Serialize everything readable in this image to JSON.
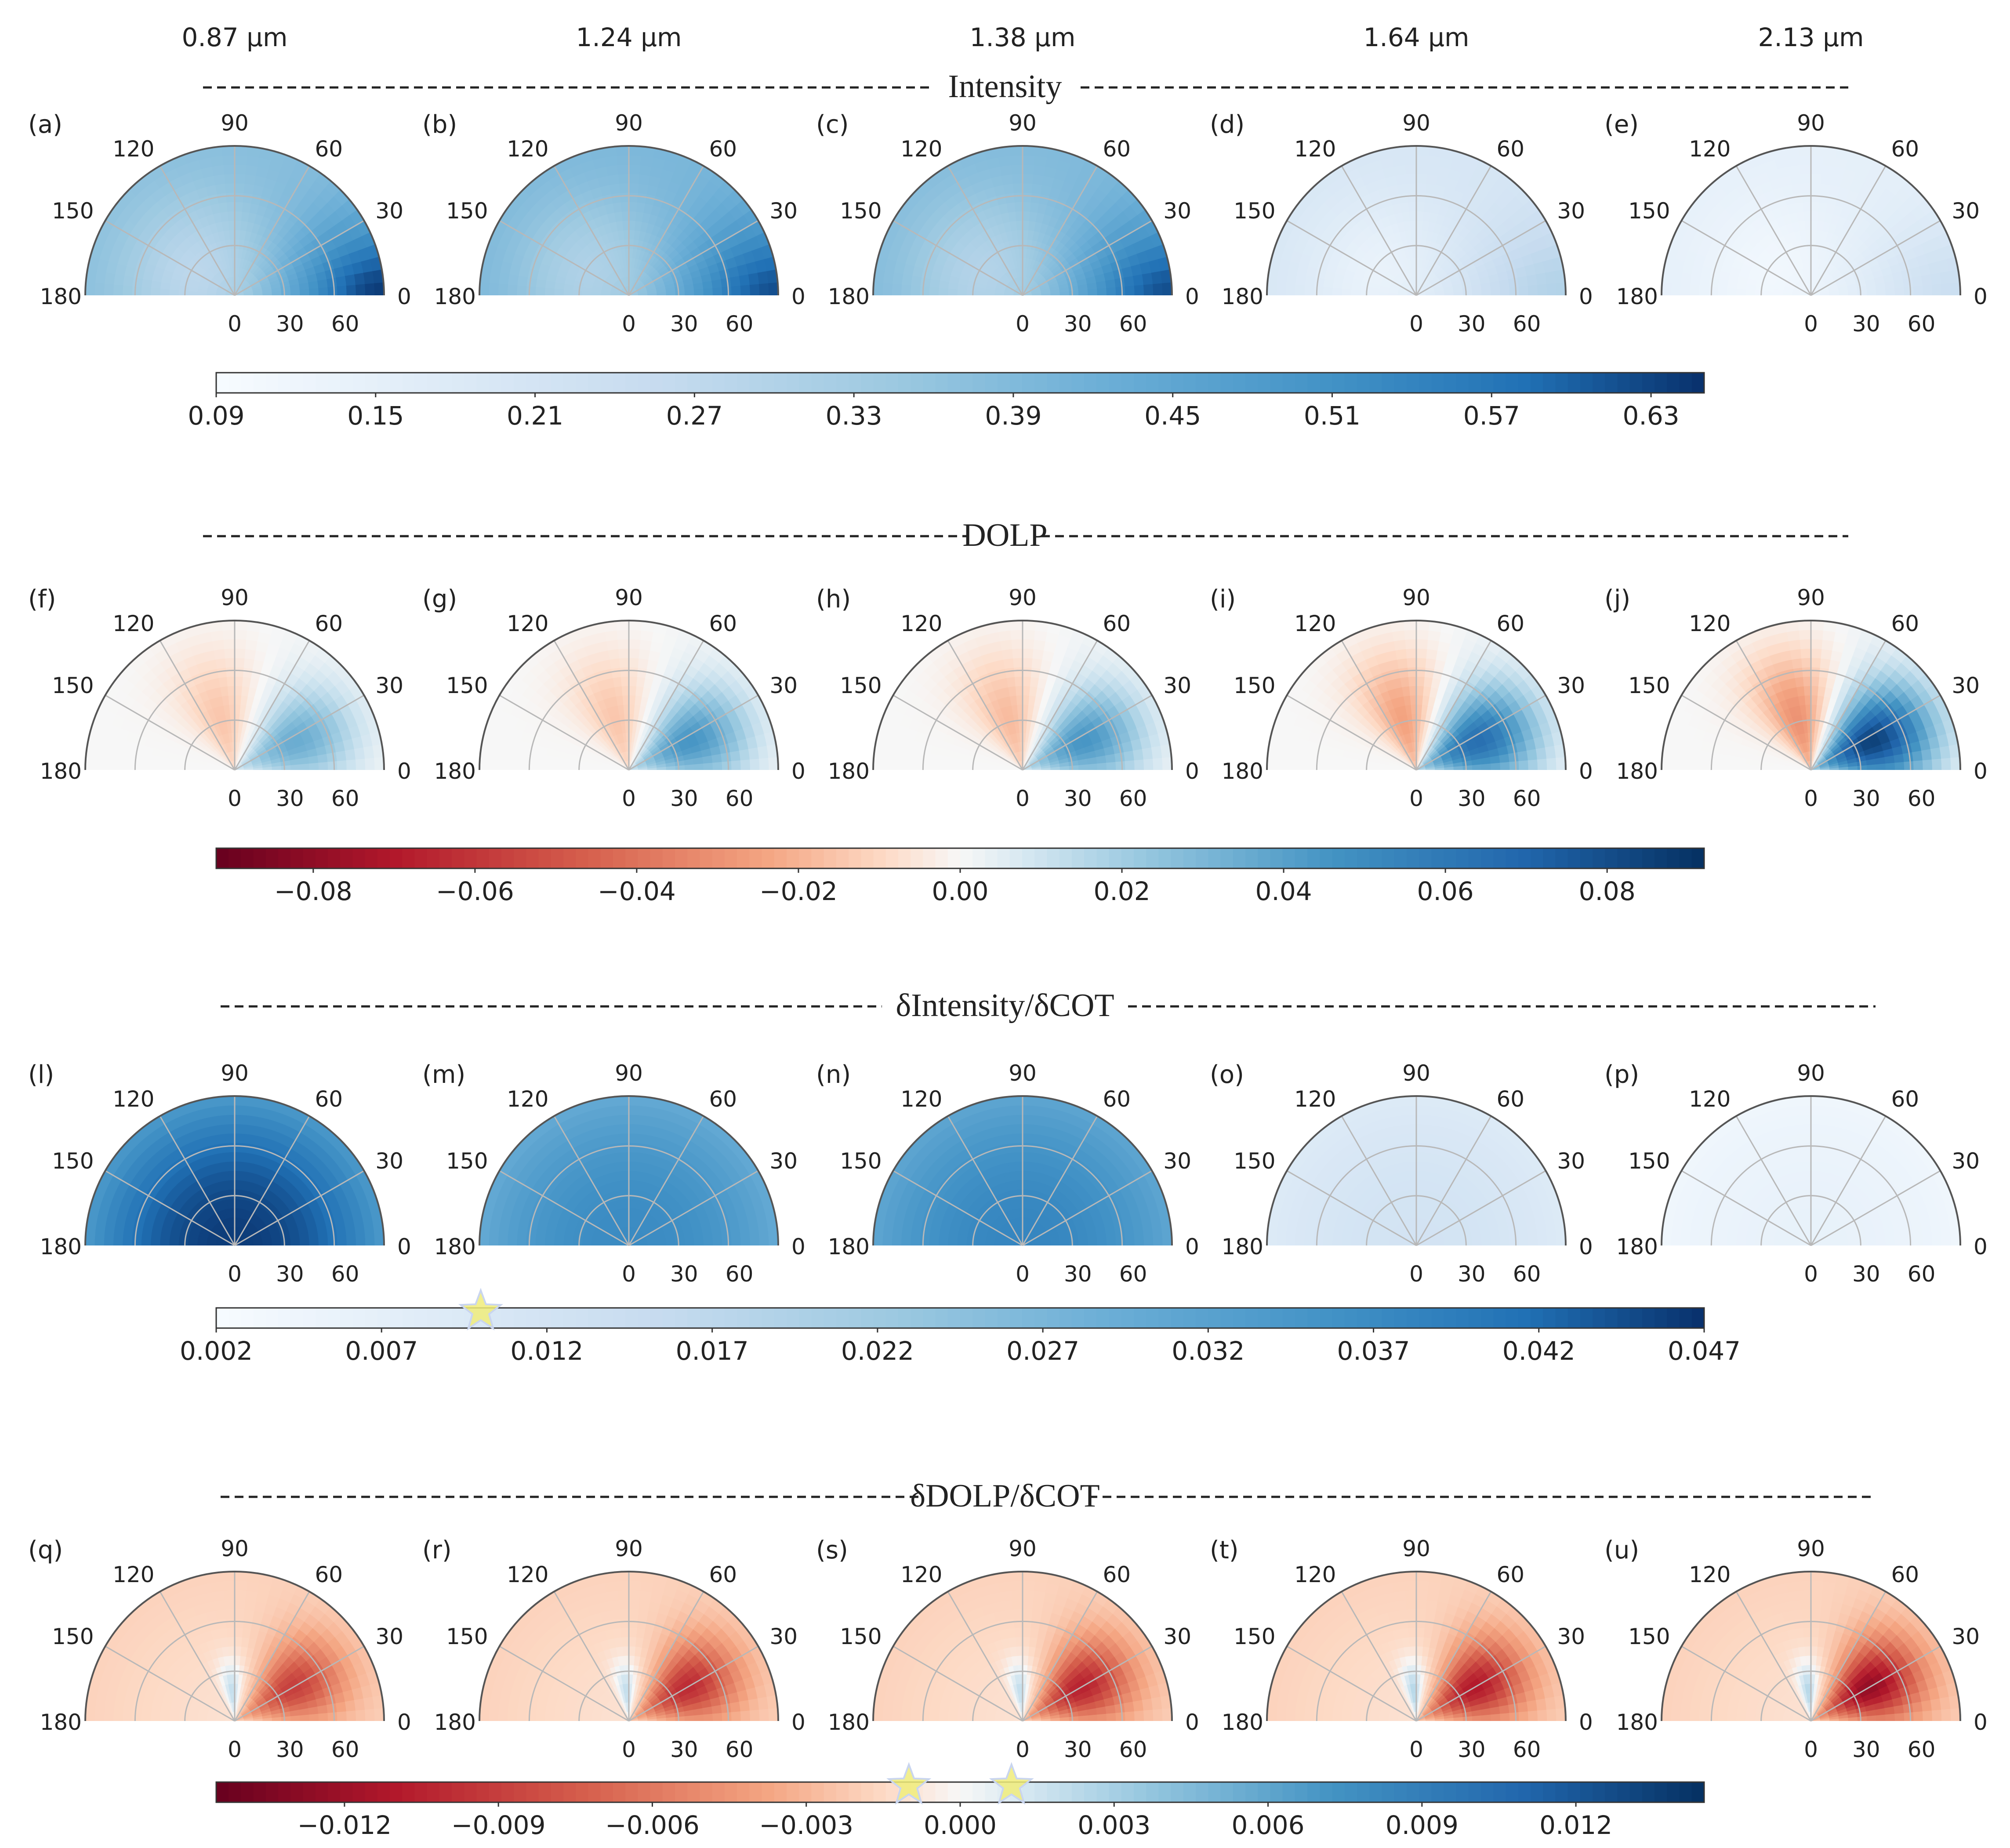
{
  "wavelength_headers": [
    "0.87 μm",
    "1.24 μm",
    "1.38 μm",
    "1.64 μm",
    "2.13 μm"
  ],
  "chart_data": [
    {
      "type": "heatmap",
      "projection": "polar-half",
      "title": "Intensity",
      "panels": [
        {
          "label": "(a)",
          "wavelength": "0.87 μm",
          "min": 0.25,
          "max": 0.64,
          "hotspot_azimuth": 0,
          "hotspot_r": 1.0,
          "bg": 0.38
        },
        {
          "label": "(b)",
          "wavelength": "1.24 μm",
          "min": 0.28,
          "max": 0.62,
          "hotspot_azimuth": 0,
          "hotspot_r": 1.0,
          "bg": 0.4
        },
        {
          "label": "(c)",
          "wavelength": "1.38 μm",
          "min": 0.27,
          "max": 0.62,
          "hotspot_azimuth": 0,
          "hotspot_r": 1.0,
          "bg": 0.39
        },
        {
          "label": "(d)",
          "wavelength": "1.64 μm",
          "min": 0.12,
          "max": 0.3,
          "hotspot_azimuth": 0,
          "hotspot_r": 0.9,
          "bg": 0.2
        },
        {
          "label": "(e)",
          "wavelength": "2.13 μm",
          "min": 0.1,
          "max": 0.24,
          "hotspot_azimuth": 0,
          "hotspot_r": 0.9,
          "bg": 0.15
        }
      ],
      "angular_ticks": [
        "0",
        "30",
        "60",
        "90",
        "120",
        "150",
        "180"
      ],
      "radial_ticks": [
        "0",
        "30",
        "60"
      ],
      "colorbar": {
        "cmap": "Blues",
        "range": [
          0.09,
          0.65
        ],
        "ticks": [
          "0.09",
          "0.15",
          "0.21",
          "0.27",
          "0.33",
          "0.39",
          "0.45",
          "0.51",
          "0.57",
          "0.63"
        ]
      }
    },
    {
      "type": "heatmap",
      "projection": "polar-half",
      "title": "DOLP",
      "panels": [
        {
          "label": "(f)",
          "wavelength": "0.87 μm",
          "min": -0.015,
          "max": 0.035
        },
        {
          "label": "(g)",
          "wavelength": "1.24 μm",
          "min": -0.015,
          "max": 0.045
        },
        {
          "label": "(h)",
          "wavelength": "1.38 μm",
          "min": -0.018,
          "max": 0.045
        },
        {
          "label": "(i)",
          "wavelength": "1.64 μm",
          "min": -0.025,
          "max": 0.065
        },
        {
          "label": "(j)",
          "wavelength": "2.13 μm",
          "min": -0.03,
          "max": 0.085
        }
      ],
      "angular_ticks": [
        "0",
        "30",
        "60",
        "90",
        "120",
        "150",
        "180"
      ],
      "radial_ticks": [
        "0",
        "30",
        "60"
      ],
      "colorbar": {
        "cmap": "RdBu",
        "range": [
          -0.092,
          0.092
        ],
        "ticks": [
          "−0.08",
          "−0.06",
          "−0.04",
          "−0.02",
          "0.00",
          "0.02",
          "0.04",
          "0.06",
          "0.08"
        ]
      }
    },
    {
      "type": "heatmap",
      "projection": "polar-half",
      "title": "δIntensity/δCOT",
      "panels": [
        {
          "label": "(l)",
          "wavelength": "0.87 μm",
          "center": 0.046,
          "edge": 0.034
        },
        {
          "label": "(m)",
          "wavelength": "1.24 μm",
          "center": 0.037,
          "edge": 0.03
        },
        {
          "label": "(n)",
          "wavelength": "1.38 μm",
          "center": 0.038,
          "edge": 0.031
        },
        {
          "label": "(o)",
          "wavelength": "1.64 μm",
          "center": 0.012,
          "edge": 0.009
        },
        {
          "label": "(p)",
          "wavelength": "2.13 μm",
          "center": 0.006,
          "edge": 0.004
        }
      ],
      "angular_ticks": [
        "0",
        "30",
        "60",
        "90",
        "120",
        "150",
        "180"
      ],
      "radial_ticks": [
        "0",
        "30",
        "60"
      ],
      "colorbar": {
        "cmap": "Blues",
        "range": [
          0.002,
          0.047
        ],
        "ticks": [
          "0.002",
          "0.007",
          "0.012",
          "0.017",
          "0.022",
          "0.027",
          "0.032",
          "0.037",
          "0.042",
          "0.047"
        ],
        "star_markers": [
          0.01
        ]
      }
    },
    {
      "type": "heatmap",
      "projection": "polar-half",
      "title": "δDOLP/δCOT",
      "panels": [
        {
          "label": "(q)",
          "wavelength": "0.87 μm",
          "min": -0.009,
          "max": 0.002
        },
        {
          "label": "(r)",
          "wavelength": "1.24 μm",
          "min": -0.01,
          "max": 0.002
        },
        {
          "label": "(s)",
          "wavelength": "1.38 μm",
          "min": -0.0105,
          "max": 0.002
        },
        {
          "label": "(t)",
          "wavelength": "1.64 μm",
          "min": -0.011,
          "max": 0.0025
        },
        {
          "label": "(u)",
          "wavelength": "2.13 μm",
          "min": -0.0125,
          "max": 0.0025
        }
      ],
      "angular_ticks": [
        "0",
        "30",
        "60",
        "90",
        "120",
        "150",
        "180"
      ],
      "radial_ticks": [
        "0",
        "30",
        "60"
      ],
      "colorbar": {
        "cmap": "RdBu",
        "range": [
          -0.0145,
          0.0145
        ],
        "ticks": [
          "−0.012",
          "−0.009",
          "−0.006",
          "−0.003",
          "0.000",
          "0.003",
          "0.006",
          "0.009",
          "0.012"
        ],
        "star_markers": [
          -0.001,
          0.001
        ]
      }
    }
  ]
}
